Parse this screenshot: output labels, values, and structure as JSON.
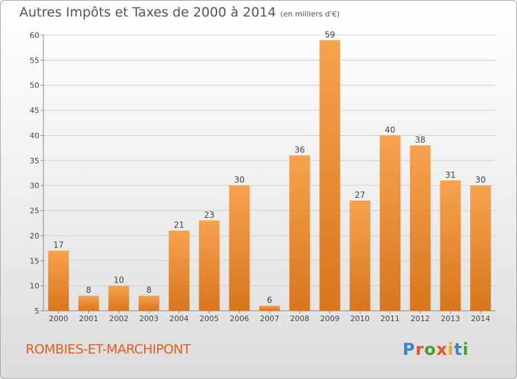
{
  "header": {
    "title": "Autres Impôts et Taxes de 2000 à 2014",
    "unit": "(en milliers d'€)"
  },
  "footer": {
    "commune": "ROMBIES-ET-MARCHIPONT",
    "brand": "Proxiti"
  },
  "colors": {
    "bar_light": "#f6a24f",
    "bar_dark": "#d8761c",
    "commune_text": "#e2601c",
    "grid": "#cfcfcf",
    "brand_letters": [
      "#3a86c8",
      "#e8532a",
      "#4aa02c",
      "#e8532a",
      "#f0a820",
      "#3a86c8",
      "#4aa02c"
    ]
  },
  "chart_data": {
    "type": "bar",
    "categories": [
      "2000",
      "2001",
      "2002",
      "2003",
      "2004",
      "2005",
      "2006",
      "2007",
      "2008",
      "2009",
      "2010",
      "2011",
      "2012",
      "2013",
      "2014"
    ],
    "values": [
      17,
      8,
      10,
      8,
      21,
      23,
      30,
      6,
      36,
      59,
      27,
      40,
      38,
      31,
      30
    ],
    "ylim": [
      5,
      60
    ],
    "yticks": [
      5,
      10,
      15,
      20,
      25,
      30,
      35,
      40,
      45,
      50,
      55,
      60
    ],
    "grid": true,
    "data_labels": true
  }
}
